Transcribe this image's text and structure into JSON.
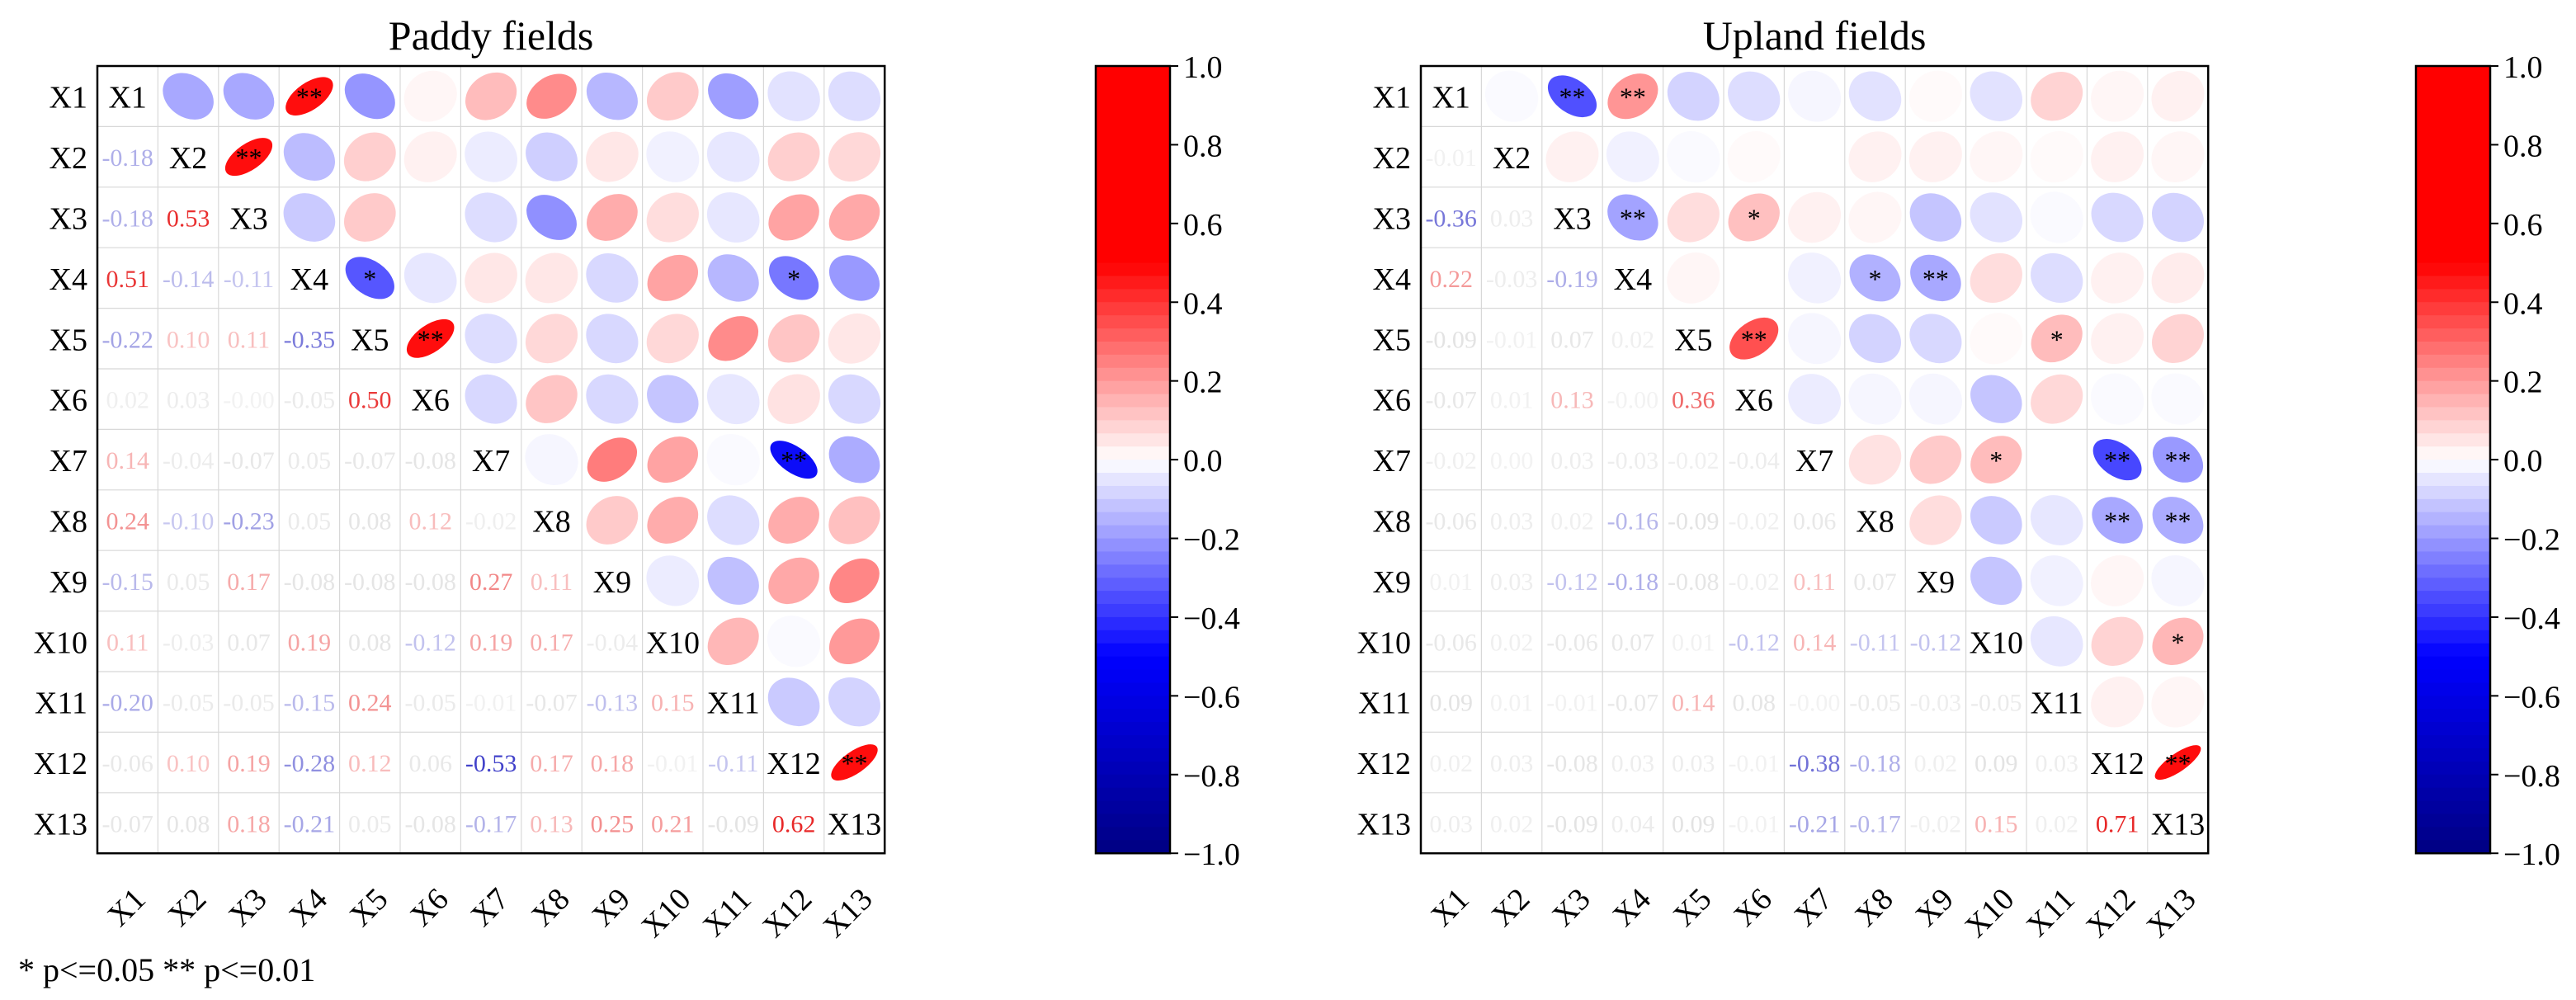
{
  "footnote": "* p<=0.05  ** p<=0.01",
  "colorbar_ticks": [
    "1.0",
    "0.8",
    "0.6",
    "0.4",
    "0.2",
    "0.0",
    "−0.2",
    "−0.4",
    "−0.6",
    "−0.8",
    "−1.0"
  ],
  "chart_data": [
    {
      "type": "heatmap",
      "title": "Paddy fields",
      "variables": [
        "X1",
        "X2",
        "X3",
        "X4",
        "X5",
        "X6",
        "X7",
        "X8",
        "X9",
        "X10",
        "X11",
        "X12",
        "X13"
      ],
      "vmin": -1.0,
      "vmax": 1.0,
      "lower": [
        [],
        [
          -0.18
        ],
        [
          -0.18,
          0.53
        ],
        [
          0.51,
          -0.14,
          -0.11
        ],
        [
          -0.22,
          0.1,
          0.11,
          -0.35
        ],
        [
          0.02,
          0.03,
          -0.0,
          -0.05,
          0.5
        ],
        [
          0.14,
          -0.04,
          -0.07,
          0.05,
          -0.07,
          -0.08
        ],
        [
          0.24,
          -0.1,
          -0.23,
          0.05,
          0.08,
          0.12,
          -0.02
        ],
        [
          -0.15,
          0.05,
          0.17,
          -0.08,
          -0.08,
          -0.08,
          0.27,
          0.11
        ],
        [
          0.11,
          -0.03,
          0.07,
          0.19,
          0.08,
          -0.12,
          0.19,
          0.17,
          -0.04
        ],
        [
          -0.2,
          -0.05,
          -0.05,
          -0.15,
          0.24,
          -0.05,
          -0.01,
          -0.07,
          -0.13,
          0.15
        ],
        [
          -0.06,
          0.1,
          0.19,
          -0.28,
          0.12,
          0.06,
          -0.53,
          0.17,
          0.18,
          -0.01,
          -0.11
        ],
        [
          -0.07,
          0.08,
          0.18,
          -0.21,
          0.05,
          -0.08,
          -0.17,
          0.13,
          0.25,
          0.21,
          -0.09,
          0.62
        ]
      ],
      "lower_labels": [
        [],
        [
          "-0.18"
        ],
        [
          "-0.18",
          "0.53"
        ],
        [
          "0.51",
          "-0.14",
          "-0.11"
        ],
        [
          "-0.22",
          "0.10",
          "0.11",
          "-0.35"
        ],
        [
          "0.02",
          "0.03",
          "-0.00",
          "-0.05",
          "0.50"
        ],
        [
          "0.14",
          "-0.04",
          "-0.07",
          "0.05",
          "-0.07",
          "-0.08"
        ],
        [
          "0.24",
          "-0.10",
          "-0.23",
          "0.05",
          "0.08",
          "0.12",
          "-0.02"
        ],
        [
          "-0.15",
          "0.05",
          "0.17",
          "-0.08",
          "-0.08",
          "-0.08",
          "0.27",
          "0.11"
        ],
        [
          "0.11",
          "-0.03",
          "0.07",
          "0.19",
          "0.08",
          "-0.12",
          "0.19",
          "0.17",
          "-0.04"
        ],
        [
          "-0.20",
          "-0.05",
          "-0.05",
          "-0.15",
          "0.24",
          "-0.05",
          "-0.01",
          "-0.07",
          "-0.13",
          "0.15"
        ],
        [
          "-0.06",
          "0.10",
          "0.19",
          "-0.28",
          "0.12",
          "0.06",
          "-0.53",
          "0.17",
          "0.18",
          "-0.01",
          "-0.11"
        ],
        [
          "-0.07",
          "0.08",
          "0.18",
          "-0.21",
          "0.05",
          "-0.08",
          "-0.17",
          "0.13",
          "0.25",
          "0.21",
          "-0.09",
          "0.62"
        ]
      ],
      "upper": [
        [
          null,
          -0.18,
          -0.18,
          0.51,
          -0.22,
          0.02,
          0.14,
          0.24,
          -0.15,
          0.11,
          -0.2,
          -0.06,
          -0.07
        ],
        [
          null,
          null,
          0.53,
          -0.14,
          0.1,
          0.03,
          -0.04,
          -0.1,
          0.05,
          -0.03,
          -0.05,
          0.1,
          0.08
        ],
        [
          null,
          null,
          null,
          -0.11,
          0.11,
          -0.0,
          -0.07,
          -0.23,
          0.17,
          0.07,
          -0.05,
          0.19,
          0.18
        ],
        [
          null,
          null,
          null,
          null,
          -0.35,
          -0.05,
          0.05,
          0.05,
          -0.08,
          0.19,
          -0.15,
          -0.28,
          -0.21
        ],
        [
          null,
          null,
          null,
          null,
          null,
          0.5,
          -0.07,
          0.08,
          -0.08,
          0.08,
          0.24,
          0.12,
          0.05
        ],
        [
          null,
          null,
          null,
          null,
          null,
          null,
          -0.08,
          0.12,
          -0.08,
          -0.12,
          -0.05,
          0.06,
          -0.08
        ],
        [
          null,
          null,
          null,
          null,
          null,
          null,
          null,
          -0.02,
          0.27,
          0.19,
          -0.01,
          -0.53,
          -0.17
        ],
        [
          null,
          null,
          null,
          null,
          null,
          null,
          null,
          null,
          0.11,
          0.17,
          -0.07,
          0.17,
          0.13
        ],
        [
          null,
          null,
          null,
          null,
          null,
          null,
          null,
          null,
          null,
          -0.04,
          -0.13,
          0.18,
          0.25
        ],
        [
          null,
          null,
          null,
          null,
          null,
          null,
          null,
          null,
          null,
          null,
          0.15,
          -0.01,
          0.21
        ],
        [
          null,
          null,
          null,
          null,
          null,
          null,
          null,
          null,
          null,
          null,
          null,
          -0.11,
          -0.09
        ],
        [
          null,
          null,
          null,
          null,
          null,
          null,
          null,
          null,
          null,
          null,
          null,
          null,
          0.62
        ],
        [
          null,
          null,
          null,
          null,
          null,
          null,
          null,
          null,
          null,
          null,
          null,
          null,
          null
        ]
      ],
      "significance": [
        {
          "row": 1,
          "col": 4,
          "label": "**"
        },
        {
          "row": 2,
          "col": 3,
          "label": "**"
        },
        {
          "row": 4,
          "col": 5,
          "label": "*"
        },
        {
          "row": 4,
          "col": 12,
          "label": "*"
        },
        {
          "row": 5,
          "col": 6,
          "label": "**"
        },
        {
          "row": 7,
          "col": 12,
          "label": "**"
        },
        {
          "row": 12,
          "col": 13,
          "label": "**"
        }
      ]
    },
    {
      "type": "heatmap",
      "title": "Upland fields",
      "variables": [
        "X1",
        "X2",
        "X3",
        "X4",
        "X5",
        "X6",
        "X7",
        "X8",
        "X9",
        "X10",
        "X11",
        "X12",
        "X13"
      ],
      "vmin": -1.0,
      "vmax": 1.0,
      "lower": [
        [],
        [
          -0.01
        ],
        [
          -0.36,
          0.03
        ],
        [
          0.22,
          -0.03,
          -0.19
        ],
        [
          -0.09,
          -0.01,
          0.07,
          0.02
        ],
        [
          -0.07,
          0.01,
          0.13,
          -0.0,
          0.36
        ],
        [
          -0.02,
          0.0,
          0.03,
          -0.03,
          -0.02,
          -0.04
        ],
        [
          -0.06,
          0.03,
          0.02,
          -0.16,
          -0.09,
          -0.02,
          0.06
        ],
        [
          0.01,
          0.03,
          -0.12,
          -0.18,
          -0.08,
          -0.02,
          0.11,
          0.07
        ],
        [
          -0.06,
          0.02,
          -0.06,
          0.07,
          0.01,
          -0.12,
          0.14,
          -0.11,
          -0.12
        ],
        [
          0.09,
          0.01,
          -0.01,
          -0.07,
          0.14,
          0.08,
          -0.0,
          -0.05,
          -0.03,
          -0.05
        ],
        [
          0.02,
          0.03,
          -0.08,
          0.03,
          0.03,
          -0.01,
          -0.38,
          -0.18,
          0.02,
          0.09,
          0.03
        ],
        [
          0.03,
          0.02,
          -0.09,
          0.04,
          0.09,
          -0.01,
          -0.21,
          -0.17,
          -0.02,
          0.15,
          0.02,
          0.71
        ]
      ],
      "lower_labels": [
        [],
        [
          "-0.01"
        ],
        [
          "-0.36",
          "0.03"
        ],
        [
          "0.22",
          "-0.03",
          "-0.19"
        ],
        [
          "-0.09",
          "-0.01",
          "0.07",
          "0.02"
        ],
        [
          "-0.07",
          "0.01",
          "0.13",
          "-0.00",
          "0.36"
        ],
        [
          "-0.02",
          "0.00",
          "0.03",
          "-0.03",
          "-0.02",
          "-0.04"
        ],
        [
          "-0.06",
          "0.03",
          "0.02",
          "-0.16",
          "-0.09",
          "-0.02",
          "0.06"
        ],
        [
          "0.01",
          "0.03",
          "-0.12",
          "-0.18",
          "-0.08",
          "-0.02",
          "0.11",
          "0.07"
        ],
        [
          "-0.06",
          "0.02",
          "-0.06",
          "0.07",
          "0.01",
          "-0.12",
          "0.14",
          "-0.11",
          "-0.12"
        ],
        [
          "0.09",
          "0.01",
          "-0.01",
          "-0.07",
          "0.14",
          "0.08",
          "-0.00",
          "-0.05",
          "-0.03",
          "-0.05"
        ],
        [
          "0.02",
          "0.03",
          "-0.08",
          "0.03",
          "0.03",
          "-0.01",
          "-0.38",
          "-0.18",
          "0.02",
          "0.09",
          "0.03"
        ],
        [
          "0.03",
          "0.02",
          "-0.09",
          "0.04",
          "0.09",
          "-0.01",
          "-0.21",
          "-0.17",
          "-0.02",
          "0.15",
          "0.02",
          "0.71"
        ]
      ],
      "upper": [
        [
          null,
          -0.01,
          -0.36,
          0.22,
          -0.09,
          -0.07,
          -0.02,
          -0.06,
          0.01,
          -0.06,
          0.09,
          0.02,
          0.03
        ],
        [
          null,
          null,
          0.03,
          -0.03,
          -0.01,
          0.01,
          0.0,
          0.03,
          0.03,
          0.02,
          0.01,
          0.03,
          0.02
        ],
        [
          null,
          null,
          null,
          -0.19,
          0.07,
          0.13,
          0.03,
          0.02,
          -0.12,
          -0.06,
          -0.01,
          -0.08,
          -0.09
        ],
        [
          null,
          null,
          null,
          null,
          0.02,
          -0.0,
          -0.03,
          -0.16,
          -0.18,
          0.07,
          -0.07,
          0.03,
          0.04
        ],
        [
          null,
          null,
          null,
          null,
          null,
          0.36,
          -0.02,
          -0.09,
          -0.08,
          0.01,
          0.14,
          0.03,
          0.09
        ],
        [
          null,
          null,
          null,
          null,
          null,
          null,
          -0.04,
          -0.02,
          -0.02,
          -0.12,
          0.08,
          -0.01,
          -0.01
        ],
        [
          null,
          null,
          null,
          null,
          null,
          null,
          null,
          0.06,
          0.11,
          0.14,
          -0.0,
          -0.38,
          -0.21
        ],
        [
          null,
          null,
          null,
          null,
          null,
          null,
          null,
          null,
          0.07,
          -0.11,
          -0.05,
          -0.18,
          -0.17
        ],
        [
          null,
          null,
          null,
          null,
          null,
          null,
          null,
          null,
          null,
          -0.12,
          -0.03,
          0.02,
          -0.02
        ],
        [
          null,
          null,
          null,
          null,
          null,
          null,
          null,
          null,
          null,
          null,
          -0.05,
          0.09,
          0.15
        ],
        [
          null,
          null,
          null,
          null,
          null,
          null,
          null,
          null,
          null,
          null,
          null,
          0.03,
          0.02
        ],
        [
          null,
          null,
          null,
          null,
          null,
          null,
          null,
          null,
          null,
          null,
          null,
          null,
          0.71
        ],
        [
          null,
          null,
          null,
          null,
          null,
          null,
          null,
          null,
          null,
          null,
          null,
          null,
          null
        ]
      ],
      "significance": [
        {
          "row": 1,
          "col": 3,
          "label": "**"
        },
        {
          "row": 1,
          "col": 4,
          "label": "**"
        },
        {
          "row": 3,
          "col": 4,
          "label": "**"
        },
        {
          "row": 3,
          "col": 6,
          "label": "*"
        },
        {
          "row": 4,
          "col": 8,
          "label": "*"
        },
        {
          "row": 4,
          "col": 9,
          "label": "**"
        },
        {
          "row": 5,
          "col": 6,
          "label": "**"
        },
        {
          "row": 5,
          "col": 11,
          "label": "*"
        },
        {
          "row": 7,
          "col": 10,
          "label": "*"
        },
        {
          "row": 7,
          "col": 12,
          "label": "**"
        },
        {
          "row": 7,
          "col": 13,
          "label": "**"
        },
        {
          "row": 8,
          "col": 12,
          "label": "**"
        },
        {
          "row": 8,
          "col": 13,
          "label": "**"
        },
        {
          "row": 10,
          "col": 13,
          "label": "*"
        },
        {
          "row": 12,
          "col": 13,
          "label": "**"
        }
      ]
    }
  ]
}
